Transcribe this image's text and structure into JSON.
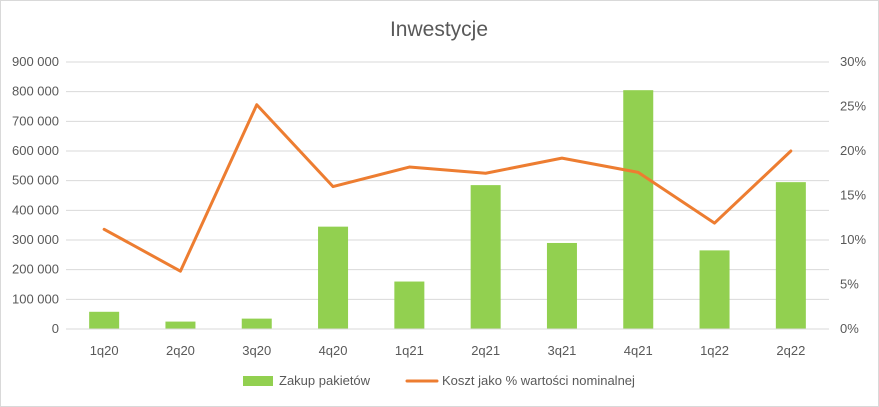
{
  "chart_data": {
    "type": "bar",
    "title": "Inwestycje",
    "categories": [
      "1q20",
      "2q20",
      "3q20",
      "4q20",
      "1q21",
      "2q21",
      "3q21",
      "4q21",
      "1q22",
      "2q22"
    ],
    "series": [
      {
        "name": "Zakup pakietów",
        "type": "bar",
        "axis": "left",
        "color": "#92d050",
        "values": [
          58000,
          25000,
          35000,
          345000,
          160000,
          485000,
          290000,
          805000,
          265000,
          495000
        ]
      },
      {
        "name": "Koszt jako % wartości nominalnej",
        "type": "line",
        "axis": "right",
        "color": "#ed7d31",
        "values": [
          0.112,
          0.065,
          0.252,
          0.16,
          0.182,
          0.175,
          0.192,
          0.176,
          0.119,
          0.2
        ]
      }
    ],
    "y_left": {
      "ylim": [
        0,
        900000
      ],
      "ticks": [
        0,
        100000,
        200000,
        300000,
        400000,
        500000,
        600000,
        700000,
        800000,
        900000
      ],
      "tick_labels": [
        "0",
        "100 000",
        "200 000",
        "300 000",
        "400 000",
        "500 000",
        "600 000",
        "700 000",
        "800 000",
        "900 000"
      ]
    },
    "y_right": {
      "ylim": [
        0,
        0.3
      ],
      "ticks": [
        0,
        0.05,
        0.1,
        0.15,
        0.2,
        0.25,
        0.3
      ],
      "tick_labels": [
        "0%",
        "5%",
        "10%",
        "15%",
        "20%",
        "25%",
        "30%"
      ]
    },
    "grid": true,
    "legend_position": "bottom"
  }
}
